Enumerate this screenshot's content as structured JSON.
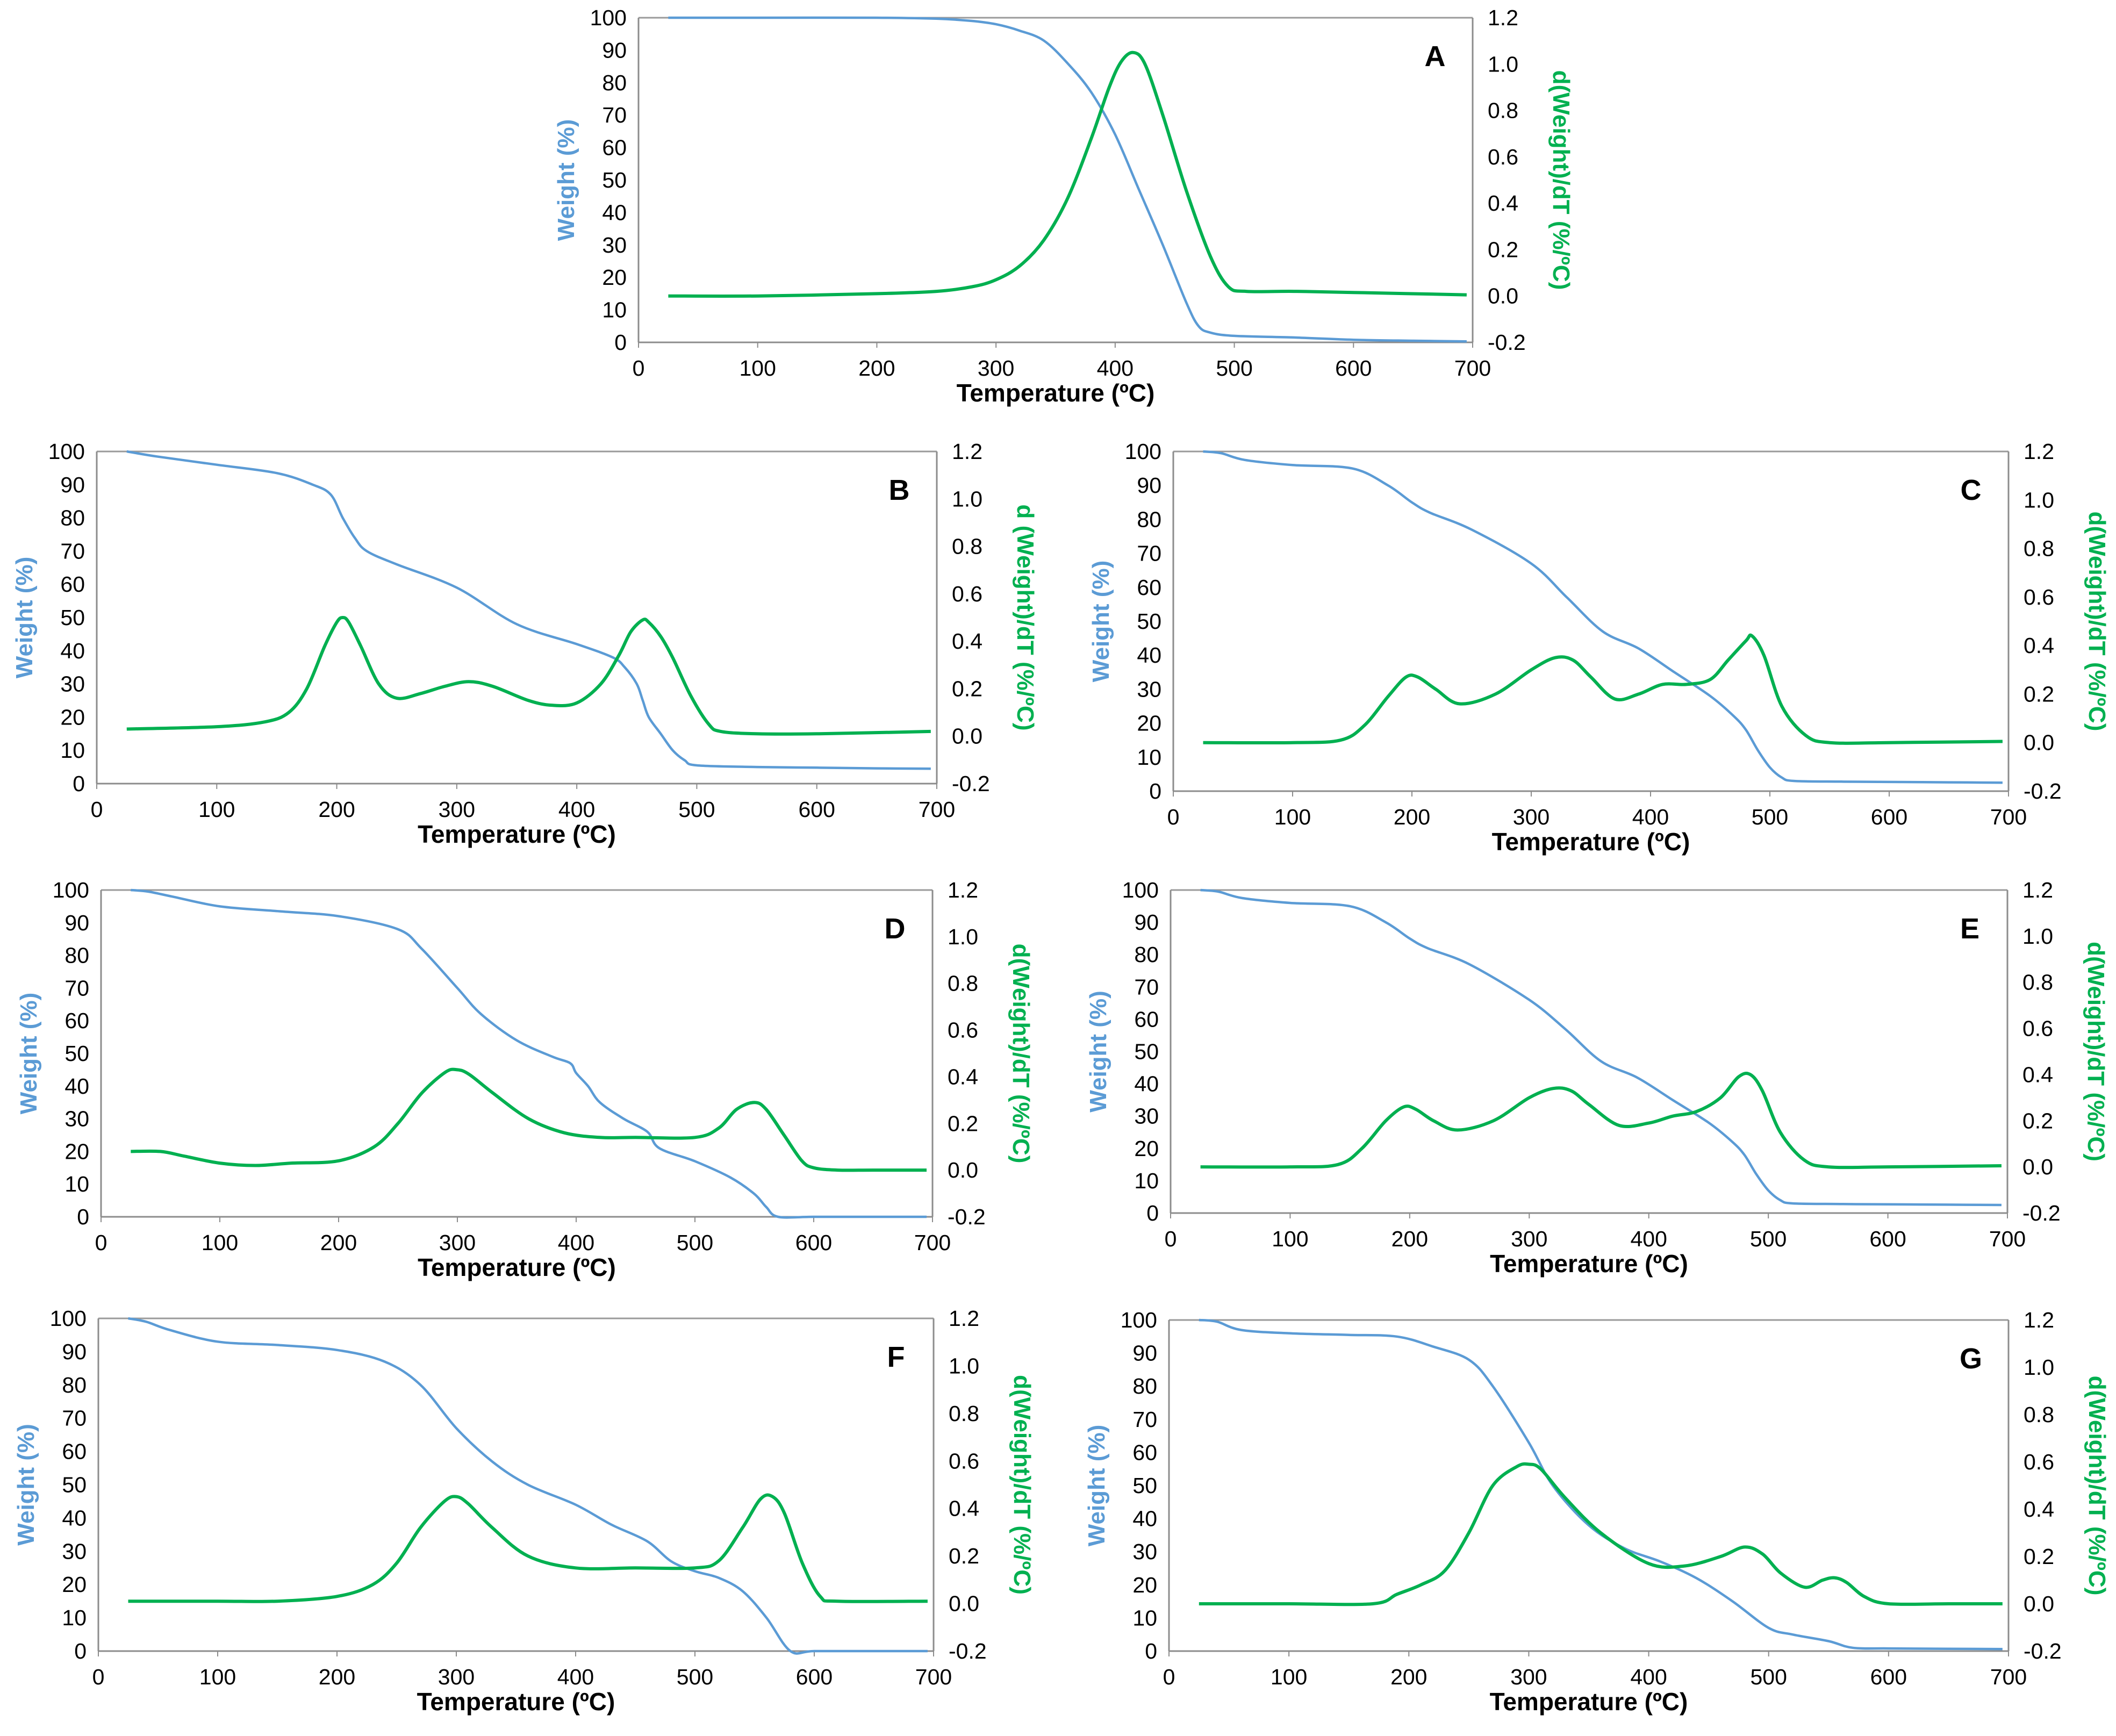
{
  "colors": {
    "weight": "#5B9BD5",
    "deriv": "#00B050",
    "axis": "#000000",
    "frame": "#9a9a9a"
  },
  "chart_data": [
    {
      "panel": "A",
      "type": "line",
      "xlabel": "Temperature (ºC)",
      "ylabel": "Weight (%)",
      "y2label": "d(Weight)/dT (%/ºC)",
      "xlim": [
        0,
        700
      ],
      "ylim": [
        0,
        100
      ],
      "y2lim": [
        -0.2,
        1.2
      ],
      "xticks": [
        "0",
        "100",
        "200",
        "300",
        "400",
        "500",
        "600",
        "700"
      ],
      "yticks": [
        "0",
        "10",
        "20",
        "30",
        "40",
        "50",
        "60",
        "70",
        "80",
        "90",
        "100"
      ],
      "y2ticks": [
        "-0.2",
        "0.0",
        "0.2",
        "0.4",
        "0.6",
        "0.8",
        "1.0",
        "1.2"
      ],
      "series": [
        {
          "name": "Weight (%)",
          "axis": "left",
          "x": [
            25,
            100,
            200,
            250,
            280,
            300,
            320,
            340,
            360,
            380,
            400,
            420,
            440,
            460,
            470,
            480,
            500,
            550,
            600,
            650,
            695
          ],
          "y": [
            100,
            100,
            100,
            99.7,
            99,
            98,
            96,
            93,
            86,
            77,
            64,
            47,
            30,
            12,
            5,
            3,
            2,
            1.5,
            0.8,
            0.5,
            0.3
          ]
        },
        {
          "name": "d(Weight)/dT (%/ºC)",
          "axis": "right",
          "x": [
            25,
            100,
            200,
            250,
            280,
            300,
            320,
            340,
            360,
            380,
            395,
            405,
            415,
            425,
            440,
            460,
            480,
            495,
            510,
            550,
            600,
            695
          ],
          "y": [
            0,
            0,
            0.01,
            0.02,
            0.04,
            0.07,
            0.13,
            0.24,
            0.42,
            0.68,
            0.9,
            1.01,
            1.05,
            1.0,
            0.78,
            0.45,
            0.17,
            0.04,
            0.02,
            0.02,
            0.015,
            0.005
          ]
        }
      ]
    },
    {
      "panel": "B",
      "type": "line",
      "xlabel": "Temperature (ºC)",
      "ylabel": "Weight (%)",
      "y2label": "d (Weight)/dT (%/ºC)",
      "xlim": [
        0,
        700
      ],
      "ylim": [
        0,
        100
      ],
      "y2lim": [
        -0.2,
        1.2
      ],
      "xticks": [
        "0",
        "100",
        "200",
        "300",
        "400",
        "500",
        "600",
        "700"
      ],
      "yticks": [
        "0",
        "10",
        "20",
        "30",
        "40",
        "50",
        "60",
        "70",
        "80",
        "90",
        "100"
      ],
      "y2ticks": [
        "-0.2",
        "0.0",
        "0.2",
        "0.4",
        "0.6",
        "0.8",
        "1.0",
        "1.2"
      ],
      "series": [
        {
          "name": "Weight (%)",
          "axis": "left",
          "x": [
            25,
            50,
            100,
            150,
            180,
            195,
            205,
            215,
            225,
            250,
            300,
            350,
            400,
            430,
            440,
            450,
            455,
            460,
            470,
            480,
            490,
            500,
            550,
            600,
            650,
            695
          ],
          "y": [
            100,
            98.5,
            96,
            93.5,
            90,
            87,
            80,
            74,
            70,
            66,
            59,
            48,
            42,
            38,
            35,
            30,
            25,
            20,
            15,
            10,
            7,
            5.5,
            5,
            4.8,
            4.6,
            4.5
          ]
        },
        {
          "name": "d (Weight)/dT (%/ºC)",
          "axis": "right",
          "x": [
            25,
            100,
            140,
            160,
            175,
            190,
            200,
            205,
            210,
            220,
            235,
            250,
            270,
            290,
            310,
            330,
            360,
            380,
            400,
            420,
            435,
            445,
            455,
            460,
            470,
            480,
            495,
            510,
            520,
            550,
            600,
            695
          ],
          "y": [
            0.03,
            0.04,
            0.06,
            0.1,
            0.2,
            0.38,
            0.48,
            0.5,
            0.48,
            0.38,
            0.22,
            0.16,
            0.18,
            0.21,
            0.23,
            0.21,
            0.15,
            0.13,
            0.14,
            0.22,
            0.34,
            0.44,
            0.49,
            0.48,
            0.42,
            0.33,
            0.17,
            0.05,
            0.02,
            0.01,
            0.01,
            0.02
          ]
        }
      ]
    },
    {
      "panel": "C",
      "type": "line",
      "xlabel": "Temperature (ºC)",
      "ylabel": "Weight (%)",
      "y2label": "d(Weight)/dT (%/ºC)",
      "xlim": [
        0,
        700
      ],
      "ylim": [
        0,
        100
      ],
      "y2lim": [
        -0.2,
        1.2
      ],
      "xticks": [
        "0",
        "100",
        "200",
        "300",
        "400",
        "500",
        "600",
        "700"
      ],
      "yticks": [
        "0",
        "10",
        "20",
        "30",
        "40",
        "50",
        "60",
        "70",
        "80",
        "90",
        "100"
      ],
      "y2ticks": [
        "-0.2",
        "0.0",
        "0.2",
        "0.4",
        "0.6",
        "0.8",
        "1.0",
        "1.2"
      ],
      "series": [
        {
          "name": "Weight (%)",
          "axis": "left",
          "x": [
            25,
            40,
            60,
            100,
            150,
            180,
            200,
            215,
            250,
            300,
            330,
            360,
            390,
            420,
            450,
            470,
            480,
            490,
            500,
            510,
            520,
            560,
            600,
            650,
            695
          ],
          "y": [
            100,
            99.5,
            97.5,
            96,
            95,
            90,
            85,
            82,
            77,
            67,
            57,
            47,
            42,
            35,
            28,
            22,
            18,
            12,
            7,
            4,
            3,
            2.8,
            2.7,
            2.6,
            2.5
          ]
        },
        {
          "name": "d(Weight)/dT (%/ºC)",
          "axis": "right",
          "x": [
            25,
            100,
            140,
            160,
            180,
            195,
            205,
            220,
            240,
            270,
            300,
            320,
            335,
            350,
            370,
            390,
            410,
            430,
            450,
            465,
            480,
            485,
            495,
            510,
            530,
            550,
            600,
            695
          ],
          "y": [
            0,
            0,
            0.01,
            0.07,
            0.19,
            0.27,
            0.27,
            0.22,
            0.16,
            0.2,
            0.3,
            0.35,
            0.34,
            0.27,
            0.18,
            0.2,
            0.24,
            0.24,
            0.26,
            0.34,
            0.42,
            0.44,
            0.36,
            0.15,
            0.03,
            0,
            0,
            0.005
          ]
        }
      ]
    },
    {
      "panel": "D",
      "type": "line",
      "xlabel": "Temperature (ºC)",
      "ylabel": "Weight (%)",
      "y2label": "d(Weight)/dT (%/ºC)",
      "xlim": [
        0,
        700
      ],
      "ylim": [
        0,
        100
      ],
      "y2lim": [
        -0.2,
        1.2
      ],
      "xticks": [
        "0",
        "100",
        "200",
        "300",
        "400",
        "500",
        "600",
        "700"
      ],
      "yticks": [
        "0",
        "10",
        "20",
        "30",
        "40",
        "50",
        "60",
        "70",
        "80",
        "90",
        "100"
      ],
      "y2ticks": [
        "-0.2",
        "0.0",
        "0.2",
        "0.4",
        "0.6",
        "0.8",
        "1.0",
        "1.2"
      ],
      "series": [
        {
          "name": "Weight (%)",
          "axis": "left",
          "x": [
            25,
            40,
            60,
            100,
            150,
            200,
            250,
            270,
            300,
            320,
            350,
            380,
            395,
            400,
            410,
            420,
            440,
            460,
            470,
            500,
            530,
            550,
            560,
            570,
            600,
            650,
            695
          ],
          "y": [
            100,
            99.5,
            98,
            95,
            93.5,
            92,
            88,
            82,
            70,
            62,
            54,
            49,
            47,
            44,
            40,
            35,
            30,
            26,
            21,
            17,
            12,
            7,
            3,
            0,
            0,
            0,
            0
          ]
        },
        {
          "name": "d(Weight)/dT (%/ºC)",
          "axis": "right",
          "x": [
            25,
            50,
            70,
            100,
            130,
            160,
            200,
            230,
            250,
            270,
            290,
            300,
            310,
            330,
            360,
            390,
            420,
            450,
            500,
            520,
            535,
            550,
            560,
            575,
            590,
            600,
            620,
            650,
            695
          ],
          "y": [
            0.08,
            0.08,
            0.06,
            0.03,
            0.02,
            0.03,
            0.04,
            0.1,
            0.2,
            0.33,
            0.42,
            0.43,
            0.41,
            0.33,
            0.22,
            0.16,
            0.14,
            0.14,
            0.14,
            0.18,
            0.26,
            0.29,
            0.26,
            0.15,
            0.04,
            0.01,
            0,
            0,
            0
          ]
        }
      ]
    },
    {
      "panel": "E",
      "type": "line",
      "xlabel": "Temperature (ºC)",
      "ylabel": "Weight (%)",
      "y2label": "d(Weight)/dT (%/ºC)",
      "xlim": [
        0,
        700
      ],
      "ylim": [
        0,
        100
      ],
      "y2lim": [
        -0.2,
        1.2
      ],
      "xticks": [
        "0",
        "100",
        "200",
        "300",
        "400",
        "500",
        "600",
        "700"
      ],
      "yticks": [
        "0",
        "10",
        "20",
        "30",
        "40",
        "50",
        "60",
        "70",
        "80",
        "90",
        "100"
      ],
      "y2ticks": [
        "-0.2",
        "0.0",
        "0.2",
        "0.4",
        "0.6",
        "0.8",
        "1.0",
        "1.2"
      ],
      "series": [
        {
          "name": "Weight (%)",
          "axis": "left",
          "x": [
            25,
            40,
            60,
            100,
            150,
            180,
            200,
            215,
            250,
            300,
            330,
            360,
            390,
            420,
            450,
            470,
            480,
            490,
            500,
            510,
            520,
            560,
            600,
            650,
            695
          ],
          "y": [
            100,
            99.5,
            97.5,
            96,
            95,
            90,
            85,
            82,
            77,
            66,
            57,
            47,
            42,
            35,
            28,
            22,
            18,
            12,
            7,
            4,
            3,
            2.8,
            2.7,
            2.6,
            2.5
          ]
        },
        {
          "name": "d(Weight)/dT (%/ºC)",
          "axis": "right",
          "x": [
            25,
            100,
            140,
            160,
            180,
            195,
            205,
            220,
            240,
            270,
            300,
            320,
            335,
            350,
            375,
            400,
            420,
            440,
            460,
            475,
            485,
            495,
            510,
            530,
            550,
            600,
            695
          ],
          "y": [
            0,
            0,
            0.01,
            0.08,
            0.2,
            0.26,
            0.25,
            0.2,
            0.16,
            0.2,
            0.3,
            0.34,
            0.33,
            0.27,
            0.18,
            0.19,
            0.22,
            0.24,
            0.3,
            0.39,
            0.4,
            0.33,
            0.15,
            0.03,
            0,
            0,
            0.005
          ]
        }
      ]
    },
    {
      "panel": "F",
      "type": "line",
      "xlabel": "Temperature (ºC)",
      "ylabel": "Weight (%)",
      "y2label": "d(Weight)/dT (%/ºC)",
      "xlim": [
        0,
        700
      ],
      "ylim": [
        0,
        100
      ],
      "y2lim": [
        -0.2,
        1.2
      ],
      "xticks": [
        "0",
        "100",
        "200",
        "300",
        "400",
        "500",
        "600",
        "700"
      ],
      "yticks": [
        "0",
        "10",
        "20",
        "30",
        "40",
        "50",
        "60",
        "70",
        "80",
        "90",
        "100"
      ],
      "y2ticks": [
        "-0.2",
        "0.0",
        "0.2",
        "0.4",
        "0.6",
        "0.8",
        "1.0",
        "1.2"
      ],
      "series": [
        {
          "name": "Weight (%)",
          "axis": "left",
          "x": [
            25,
            40,
            60,
            100,
            150,
            200,
            240,
            270,
            300,
            330,
            360,
            400,
            430,
            460,
            480,
            500,
            520,
            540,
            560,
            580,
            600,
            650,
            695
          ],
          "y": [
            100,
            99,
            96.5,
            93,
            92,
            90.5,
            87,
            80,
            67,
            57,
            50,
            44,
            38,
            33,
            27,
            24,
            22,
            18,
            10,
            0,
            0,
            0,
            0
          ]
        },
        {
          "name": "d(Weight)/dT (%/ºC)",
          "axis": "right",
          "x": [
            25,
            100,
            150,
            200,
            230,
            250,
            270,
            290,
            300,
            310,
            330,
            360,
            400,
            450,
            500,
            520,
            540,
            555,
            565,
            575,
            590,
            605,
            620,
            695
          ],
          "y": [
            0.01,
            0.01,
            0.01,
            0.03,
            0.08,
            0.17,
            0.32,
            0.43,
            0.45,
            0.42,
            0.32,
            0.2,
            0.15,
            0.15,
            0.15,
            0.18,
            0.32,
            0.44,
            0.45,
            0.38,
            0.17,
            0.03,
            0.01,
            0.01
          ]
        }
      ]
    },
    {
      "panel": "G",
      "type": "line",
      "xlabel": "Temperature (ºC)",
      "ylabel": "Weight (%)",
      "y2label": "d(Weight)/dT (%/ºC)",
      "xlim": [
        0,
        700
      ],
      "ylim": [
        0,
        100
      ],
      "y2lim": [
        -0.2,
        1.2
      ],
      "xticks": [
        "0",
        "100",
        "200",
        "300",
        "400",
        "500",
        "600",
        "700"
      ],
      "yticks": [
        "0",
        "10",
        "20",
        "30",
        "40",
        "50",
        "60",
        "70",
        "80",
        "90",
        "100"
      ],
      "y2ticks": [
        "-0.2",
        "0.0",
        "0.2",
        "0.4",
        "0.6",
        "0.8",
        "1.0",
        "1.2"
      ],
      "series": [
        {
          "name": "Weight (%)",
          "axis": "left",
          "x": [
            25,
            40,
            60,
            100,
            150,
            190,
            220,
            250,
            270,
            300,
            320,
            350,
            380,
            410,
            440,
            470,
            500,
            520,
            550,
            570,
            600,
            650,
            695
          ],
          "y": [
            100,
            99.5,
            97,
            96,
            95.5,
            95,
            92,
            88,
            80,
            63,
            50,
            38,
            31,
            27,
            22,
            15,
            7,
            5,
            3,
            1,
            0.8,
            0.7,
            0.6
          ]
        },
        {
          "name": "d(Weight)/dT (%/ºC)",
          "axis": "right",
          "x": [
            25,
            100,
            170,
            190,
            210,
            230,
            250,
            270,
            290,
            300,
            310,
            330,
            360,
            400,
            430,
            460,
            480,
            495,
            510,
            530,
            545,
            555,
            565,
            580,
            600,
            650,
            695
          ],
          "y": [
            0,
            0,
            0,
            0.04,
            0.08,
            0.14,
            0.3,
            0.5,
            0.58,
            0.59,
            0.57,
            0.45,
            0.3,
            0.17,
            0.16,
            0.2,
            0.24,
            0.21,
            0.13,
            0.07,
            0.1,
            0.11,
            0.09,
            0.03,
            0,
            0,
            0
          ]
        }
      ]
    }
  ]
}
